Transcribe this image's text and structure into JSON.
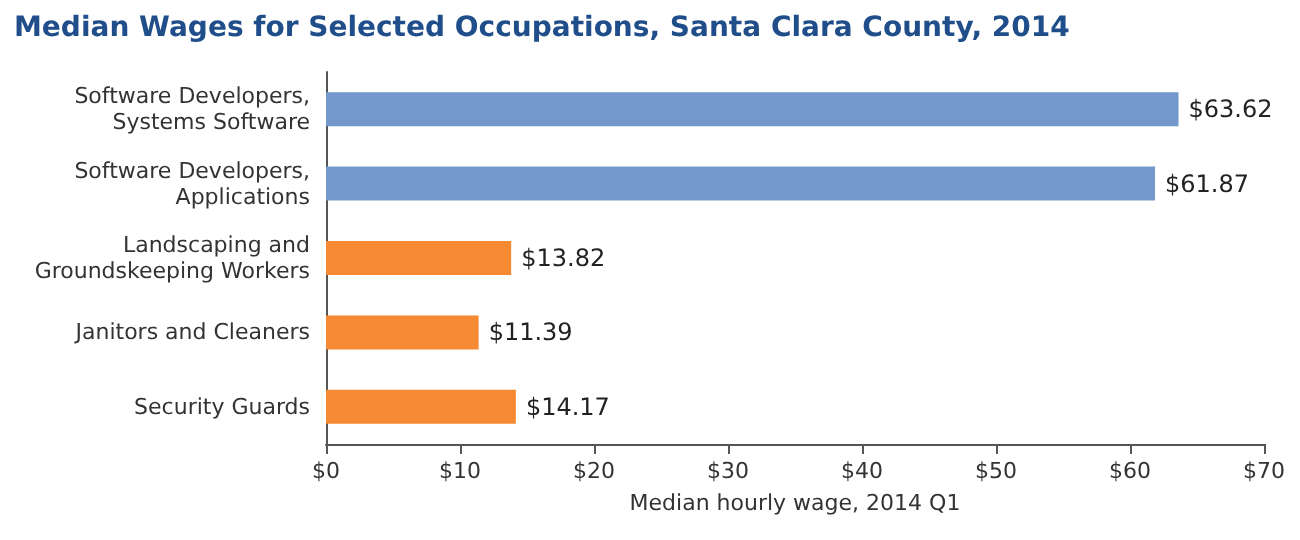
{
  "chart_data": {
    "type": "bar",
    "orientation": "horizontal",
    "title": "Median Wages for Selected Occupations, Santa Clara County, 2014",
    "xlabel": "Median hourly wage, 2014 Q1",
    "categories": [
      "Software Developers,\nSystems Software",
      "Software Developers,\nApplications",
      "Landscaping and\nGroundskeeping Workers",
      "Janitors and Cleaners",
      "Security Guards"
    ],
    "values": [
      63.62,
      61.87,
      13.82,
      11.39,
      14.17
    ],
    "colors": [
      "#7399cc",
      "#7399cc",
      "#f58a33",
      "#f58a33",
      "#f58a33"
    ],
    "value_labels": [
      "$63.62",
      "$61.87",
      "$13.82",
      "$11.39",
      "$14.17"
    ],
    "xlim": [
      0,
      70
    ],
    "xticks": [
      {
        "value": 0,
        "label": "$0"
      },
      {
        "value": 10,
        "label": "$10"
      },
      {
        "value": 20,
        "label": "$20"
      },
      {
        "value": 30,
        "label": "$30"
      },
      {
        "value": 40,
        "label": "$40"
      },
      {
        "value": 50,
        "label": "$50"
      },
      {
        "value": 60,
        "label": "$60"
      },
      {
        "value": 70,
        "label": "$70"
      }
    ],
    "grid": false
  }
}
